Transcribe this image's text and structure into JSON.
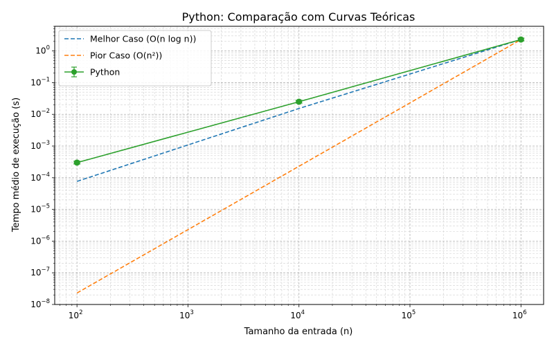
{
  "chart_data": {
    "type": "line",
    "title": "Python: Comparação com Curvas Teóricas",
    "xlabel": "Tamanho da entrada (n)",
    "ylabel": "Tempo médio de execução (s)",
    "xscale": "log",
    "yscale": "log",
    "xlim": [
      63,
      1600000
    ],
    "ylim": [
      1e-08,
      6
    ],
    "grid": "both-major-minor",
    "legend_position": "top-left",
    "x_ticks": [
      {
        "value": 100,
        "base": "10",
        "exp": "2"
      },
      {
        "value": 1000,
        "base": "10",
        "exp": "3"
      },
      {
        "value": 10000,
        "base": "10",
        "exp": "4"
      },
      {
        "value": 100000,
        "base": "10",
        "exp": "5"
      },
      {
        "value": 1000000,
        "base": "10",
        "exp": "6"
      }
    ],
    "y_ticks": [
      {
        "value": 1e-08,
        "base": "10",
        "exp": "−8"
      },
      {
        "value": 1e-07,
        "base": "10",
        "exp": "−7"
      },
      {
        "value": 1e-06,
        "base": "10",
        "exp": "−6"
      },
      {
        "value": 1e-05,
        "base": "10",
        "exp": "−5"
      },
      {
        "value": 0.0001,
        "base": "10",
        "exp": "−4"
      },
      {
        "value": 0.001,
        "base": "10",
        "exp": "−3"
      },
      {
        "value": 0.01,
        "base": "10",
        "exp": "−2"
      },
      {
        "value": 0.1,
        "base": "10",
        "exp": "−1"
      },
      {
        "value": 1,
        "base": "10",
        "exp": "0"
      }
    ],
    "series": [
      {
        "name": "Melhor Caso (O(n log n))",
        "style": "dashed",
        "color": "#1f77b4",
        "marker": "none",
        "points": [
          {
            "x": 100,
            "y": 7.66e-05
          },
          {
            "x": 10000,
            "y": 0.0153
          },
          {
            "x": 1000000,
            "y": 2.3
          }
        ]
      },
      {
        "name": "Pior Caso (O(n²))",
        "style": "dashed",
        "color": "#ff7f0e",
        "marker": "none",
        "points": [
          {
            "x": 100,
            "y": 2.3e-08
          },
          {
            "x": 10000,
            "y": 0.00023
          },
          {
            "x": 1000000,
            "y": 2.3
          }
        ]
      },
      {
        "name": "Python",
        "style": "solid",
        "color": "#2ca02c",
        "marker": "circle",
        "error_bars": true,
        "points": [
          {
            "x": 100,
            "y": 0.0003
          },
          {
            "x": 10000,
            "y": 0.025
          },
          {
            "x": 1000000,
            "y": 2.3
          }
        ]
      }
    ]
  }
}
